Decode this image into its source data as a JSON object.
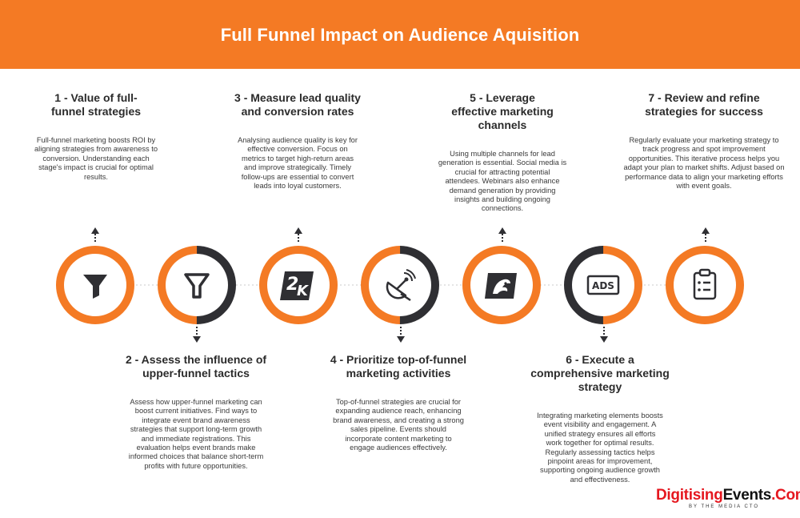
{
  "header": {
    "title": "Full Funnel Impact on Audience Aquisition"
  },
  "steps": [
    {
      "title": "1 - Value of full-funnel strategies",
      "body": "Full-funnel marketing boosts ROI by aligning strategies from awareness to conversion. Understanding each stage's impact is crucial for optimal results.",
      "icon": "funnel-filled-icon"
    },
    {
      "title": "2 - Assess the influence of upper-funnel tactics",
      "body": "Assess how upper-funnel marketing can boost current initiatives. Find ways to integrate event brand awareness strategies that support long-term growth and immediate registrations. This evaluation helps event brands make informed choices that balance short-term profits with future opportunities.",
      "icon": "funnel-outline-icon"
    },
    {
      "title": "3 - Measure lead quality and conversion rates",
      "body": "Analysing audience quality is key for effective conversion. Focus on metrics to target high-return areas and improve strategically. Timely follow-ups are essential to convert leads into loyal customers.",
      "icon": "2k-icon"
    },
    {
      "title": "4 - Prioritize top-of-funnel marketing activities",
      "body": "Top-of-funnel strategies are crucial for expanding audience reach, enhancing brand awareness, and creating a strong sales pipeline. Events should incorporate content marketing to engage audiences effectively.",
      "icon": "satellite-icon"
    },
    {
      "title": "5 - Leverage effective marketing channels",
      "body": "Using multiple channels for lead generation is essential. Social media is crucial for attracting potential attendees. Webinars also enhance demand generation by providing insights and building ongoing connections.",
      "icon": "lion-logo-icon"
    },
    {
      "title": "6 - Execute a comprehensive marketing strategy",
      "body": "Integrating marketing elements boosts event visibility and engagement. A unified strategy ensures all efforts work together for optimal results. Regularly assessing tactics helps pinpoint areas for improvement, supporting ongoing audience growth and effectiveness.",
      "icon": "ads-icon"
    },
    {
      "title": "7 - Review and refine strategies for success",
      "body": "Regularly evaluate your marketing strategy to track progress and spot improvement opportunities. This iterative process helps you adapt your plan to market shifts. Adjust based on performance data to align your marketing efforts with event goals.",
      "icon": "clipboard-checklist-icon"
    }
  ],
  "logo": {
    "brand_red": "Digitising",
    "brand_black": "Events",
    "brand_suffix": ".Com",
    "tagline": "BY THE MEDIA CTO"
  },
  "colors": {
    "accent": "#f47a24",
    "dark": "#2f2f33",
    "brand_red": "#e5171f"
  }
}
